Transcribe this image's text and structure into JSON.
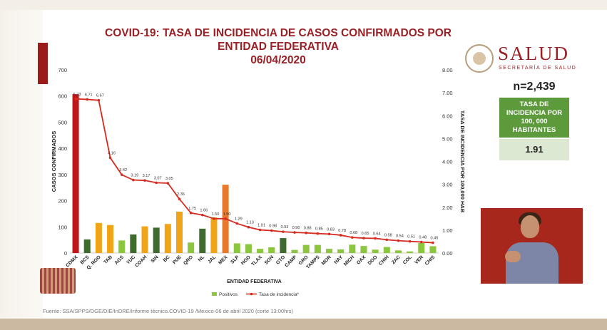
{
  "title_lines": [
    "COVID-19: TASA DE INCIDENCIA DE CASOS CONFIRMADOS POR",
    "ENTIDAD FEDERATIVA",
    "06/04/2020"
  ],
  "brand": {
    "name": "SALUD",
    "subtitle": "SECRETARÍA DE SALUD"
  },
  "summary": {
    "n_label": "n=2,439",
    "rate_label": "TASA DE INCIDENCIA POR 100, 000 HABITANTES",
    "rate_value": "1.91"
  },
  "source_note": "Fuente: SSA/SPPS/DGE/DIE/InDRE/Informe técnico.COVID-19 /Mexico-06 de abril 2020 (corte 13:00hrs)",
  "colors": {
    "red": "#c0161a",
    "orange": "#f0a519",
    "dark_green": "#3f6b2f",
    "light_green": "#8cc63f",
    "mex_orange": "#e8782a",
    "line": "#d62b1f"
  },
  "chart_data": {
    "type": "bar",
    "title": "",
    "xlabel": "ENTIDAD FEDERATIVA",
    "ylabel": "CASOS CONFIRMADOS",
    "y2label": "TASA DE INCIDENCIA POR 100,000 HAB",
    "ylim": [
      0,
      700
    ],
    "y2lim": [
      0,
      8
    ],
    "yticks": [
      "0",
      "100",
      "200",
      "300",
      "400",
      "500",
      "600",
      "700"
    ],
    "y2ticks": [
      "0.00",
      "1.00",
      "2.00",
      "3.00",
      "4.00",
      "5.00",
      "6.00",
      "7.00",
      "8.00"
    ],
    "grid": false,
    "legend_position": "bottom",
    "legend": [
      "Positivos",
      "Tasa de incidencia*"
    ],
    "categories": [
      "CDMX",
      "BCS",
      "Q. ROO",
      "TAB",
      "AGS",
      "YUC",
      "COAH",
      "SIN",
      "BC",
      "PUE",
      "QRO",
      "NL",
      "JAL",
      "MEX",
      "SLP",
      "HGO",
      "TLAX",
      "SON",
      "GTO",
      "CAMP",
      "GRO",
      "TAMPS",
      "MOR",
      "NAY",
      "MICH",
      "OAX",
      "DGO",
      "CHIH",
      "ZAC",
      "COL",
      "VER",
      "CHIS"
    ],
    "series": [
      {
        "name": "Positivos",
        "type": "bar",
        "values": [
          607,
          52,
          115,
          107,
          48,
          71,
          102,
          97,
          111,
          158,
          40,
          93,
          136,
          261,
          37,
          34,
          16,
          22,
          57,
          12,
          31,
          31,
          16,
          14,
          32,
          27,
          13,
          23,
          10,
          6,
          38,
          26
        ],
        "bar_color_groups": [
          "red",
          "dark_green",
          "orange",
          "orange",
          "light_green",
          "dark_green",
          "orange",
          "dark_green",
          "orange",
          "orange",
          "light_green",
          "dark_green",
          "orange",
          "mex_orange",
          "light_green",
          "light_green",
          "light_green",
          "light_green",
          "dark_green",
          "light_green",
          "light_green",
          "light_green",
          "light_green",
          "light_green",
          "light_green",
          "light_green",
          "light_green",
          "light_green",
          "light_green",
          "light_green",
          "light_green",
          "light_green"
        ]
      },
      {
        "name": "Tasa de incidencia*",
        "type": "line",
        "values": [
          6.73,
          6.71,
          6.67,
          4.16,
          3.42,
          3.19,
          3.17,
          3.07,
          3.05,
          2.36,
          1.75,
          1.66,
          1.5,
          1.5,
          1.29,
          1.13,
          1.01,
          0.98,
          0.93,
          0.9,
          0.88,
          0.85,
          0.83,
          0.78,
          0.68,
          0.65,
          0.64,
          0.58,
          0.54,
          0.51,
          0.48,
          0.45
        ],
        "labels": [
          "6.73",
          "6.71",
          "6.67",
          "4.16",
          "3.42",
          "3.19",
          "3.17",
          "3.07",
          "3.05",
          "2.36",
          "1.75",
          "1.66",
          "1.50",
          "1.50",
          "1.29",
          "1.13",
          "1.01",
          "0.98",
          "0.93",
          "0.90",
          "0.88",
          "0.85",
          "0.83",
          "0.78",
          "0.68",
          "0.65",
          "0.64",
          "0.58",
          "0.54",
          "0.51",
          "0.48",
          "0.45"
        ]
      }
    ]
  }
}
